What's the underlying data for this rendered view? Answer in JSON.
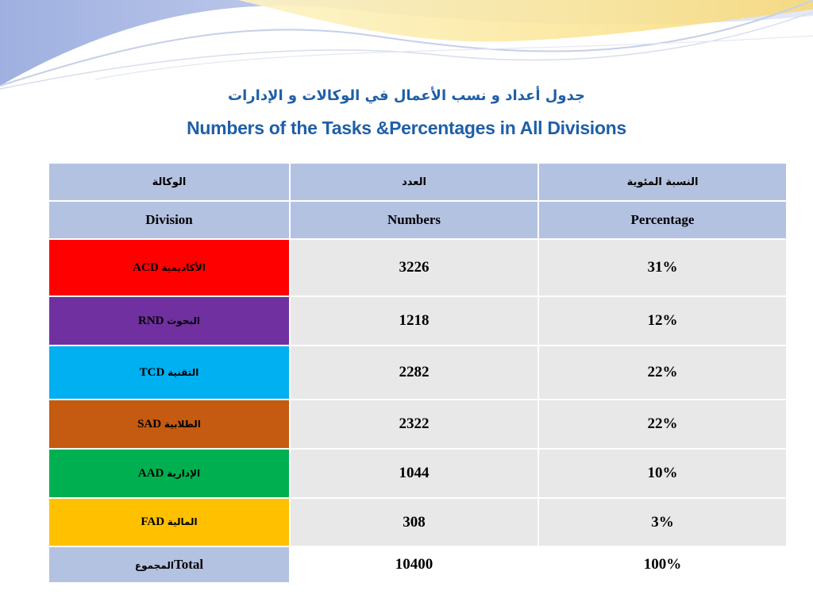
{
  "titles": {
    "arabic": "جدول أعداد و نسب الأعمال في الوكالات و الإدارات",
    "english": "Numbers  of the Tasks &Percentages in All Divisions"
  },
  "colors": {
    "title_blue": "#1f5fa8",
    "header_bg": "#b3c2e0",
    "cell_bg": "#e8e8e8",
    "acd": "#ff0000",
    "rnd": "#7030a0",
    "tcd": "#00b0f0",
    "sad": "#c55a11",
    "aad": "#00b050",
    "fad": "#ffc000"
  },
  "table": {
    "headers_ar": [
      "الوكالة",
      "العدد",
      "النسبة المئوية"
    ],
    "headers_en": [
      "Division",
      "Numbers",
      "Percentage"
    ],
    "rows": [
      {
        "code": "ACD",
        "name_ar": "الأكاديمية",
        "number": "3226",
        "percent": "31%"
      },
      {
        "code": "RND",
        "name_ar": "البحوث",
        "number": "1218",
        "percent": "12%"
      },
      {
        "code": "TCD",
        "name_ar": "التقنية",
        "number": "2282",
        "percent": "22%"
      },
      {
        "code": "SAD",
        "name_ar": "الطلابية",
        "number": "2322",
        "percent": "22%"
      },
      {
        "code": "AAD",
        "name_ar": "الإدارية",
        "number": "1044",
        "percent": "10%"
      },
      {
        "code": "FAD",
        "name_ar": "المالية",
        "number": "308",
        "percent": "3%"
      }
    ],
    "total": {
      "label_ar": "المجموع",
      "label_en": "Total",
      "number": "10400",
      "percent": "100%"
    }
  }
}
